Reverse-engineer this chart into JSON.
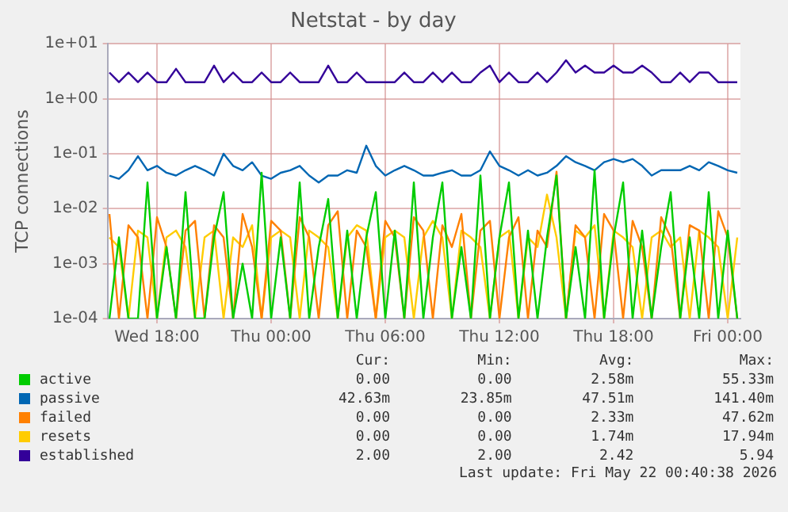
{
  "chart_data": {
    "type": "line",
    "title": "Netstat - by day",
    "ylabel": "TCP connections",
    "log": "y",
    "grid": true,
    "legend": "bottom",
    "marker": "none",
    "line_style": "solid",
    "x": [
      "2026-05-20T15:30",
      "2026-05-20T16:00",
      "2026-05-20T16:30",
      "2026-05-20T17:00",
      "2026-05-20T17:30",
      "2026-05-20T18:00",
      "2026-05-20T18:30",
      "2026-05-20T19:00",
      "2026-05-20T19:30",
      "2026-05-20T20:00",
      "2026-05-20T20:30",
      "2026-05-20T21:00",
      "2026-05-20T21:30",
      "2026-05-20T22:00",
      "2026-05-20T22:30",
      "2026-05-20T23:00",
      "2026-05-20T23:30",
      "2026-05-21T00:00",
      "2026-05-21T00:30",
      "2026-05-21T01:00",
      "2026-05-21T01:30",
      "2026-05-21T02:00",
      "2026-05-21T02:30",
      "2026-05-21T03:00",
      "2026-05-21T03:30",
      "2026-05-21T04:00",
      "2026-05-21T04:30",
      "2026-05-21T05:00",
      "2026-05-21T05:30",
      "2026-05-21T06:00",
      "2026-05-21T06:30",
      "2026-05-21T07:00",
      "2026-05-21T07:30",
      "2026-05-21T08:00",
      "2026-05-21T08:30",
      "2026-05-21T09:00",
      "2026-05-21T09:30",
      "2026-05-21T10:00",
      "2026-05-21T10:30",
      "2026-05-21T11:00",
      "2026-05-21T11:30",
      "2026-05-21T12:00",
      "2026-05-21T12:30",
      "2026-05-21T13:00",
      "2026-05-21T13:30",
      "2026-05-21T14:00",
      "2026-05-21T14:30",
      "2026-05-21T15:00",
      "2026-05-21T15:30",
      "2026-05-21T16:00",
      "2026-05-21T16:30",
      "2026-05-21T17:00",
      "2026-05-21T17:30",
      "2026-05-21T18:00",
      "2026-05-21T18:30",
      "2026-05-21T19:00",
      "2026-05-21T19:30",
      "2026-05-21T20:00",
      "2026-05-21T20:30",
      "2026-05-21T21:00",
      "2026-05-21T21:30",
      "2026-05-21T22:00",
      "2026-05-21T22:30",
      "2026-05-21T23:00",
      "2026-05-21T23:30",
      "2026-05-22T00:00",
      "2026-05-22T00:30"
    ],
    "xlim": [
      "2026-05-20T15:24",
      "2026-05-22T00:40"
    ],
    "xticks": [
      {
        "value": "2026-05-20T18:00",
        "label": "Wed 18:00"
      },
      {
        "value": "2026-05-21T00:00",
        "label": "Thu 00:00"
      },
      {
        "value": "2026-05-21T06:00",
        "label": "Thu 06:00"
      },
      {
        "value": "2026-05-21T12:00",
        "label": "Thu 12:00"
      },
      {
        "value": "2026-05-21T18:00",
        "label": "Thu 18:00"
      },
      {
        "value": "2026-05-22T00:00",
        "label": "Fri 00:00"
      }
    ],
    "ylim": [
      0.0001,
      10
    ],
    "yticks": [
      {
        "value": 0.0001,
        "label": "1e-04"
      },
      {
        "value": 0.001,
        "label": "1e-03"
      },
      {
        "value": 0.01,
        "label": "1e-02"
      },
      {
        "value": 0.1,
        "label": "1e-01"
      },
      {
        "value": 1,
        "label": "1e+00"
      },
      {
        "value": 10,
        "label": "1e+01"
      }
    ],
    "series": [
      {
        "name": "active",
        "color": "#00cc00",
        "values": [
          0.0001,
          0.003,
          0.0001,
          0.0001,
          0.03,
          0.0001,
          0.002,
          0.0001,
          0.02,
          0.0001,
          0.0001,
          0.003,
          0.02,
          0.0001,
          0.001,
          0.0001,
          0.045,
          0.0001,
          0.003,
          0.0001,
          0.03,
          0.0001,
          0.002,
          0.015,
          0.0001,
          0.004,
          0.0001,
          0.003,
          0.02,
          0.0001,
          0.004,
          0.0001,
          0.03,
          0.0001,
          0.003,
          0.03,
          0.0001,
          0.002,
          0.0001,
          0.04,
          0.0001,
          0.003,
          0.03,
          0.0001,
          0.004,
          0.0001,
          0.003,
          0.04,
          0.0001,
          0.002,
          0.0001,
          0.05,
          0.0001,
          0.003,
          0.03,
          0.0001,
          0.004,
          0.0001,
          0.002,
          0.02,
          0.0001,
          0.003,
          0.0001,
          0.02,
          0.0001,
          0.004,
          0.0001
        ]
      },
      {
        "name": "passive",
        "color": "#0066b3",
        "values": [
          0.04,
          0.035,
          0.05,
          0.09,
          0.05,
          0.06,
          0.045,
          0.04,
          0.05,
          0.06,
          0.05,
          0.04,
          0.1,
          0.06,
          0.05,
          0.07,
          0.04,
          0.035,
          0.045,
          0.05,
          0.06,
          0.04,
          0.03,
          0.04,
          0.04,
          0.05,
          0.045,
          0.14,
          0.06,
          0.04,
          0.05,
          0.06,
          0.05,
          0.04,
          0.04,
          0.045,
          0.05,
          0.04,
          0.04,
          0.05,
          0.11,
          0.06,
          0.05,
          0.04,
          0.05,
          0.04,
          0.045,
          0.06,
          0.09,
          0.07,
          0.06,
          0.05,
          0.07,
          0.08,
          0.07,
          0.08,
          0.06,
          0.04,
          0.05,
          0.05,
          0.05,
          0.06,
          0.05,
          0.07,
          0.06,
          0.05,
          0.045
        ]
      },
      {
        "name": "failed",
        "color": "#ff8000",
        "values": [
          0.008,
          0.0001,
          0.005,
          0.003,
          0.0001,
          0.007,
          0.002,
          0.0001,
          0.004,
          0.006,
          0.0001,
          0.005,
          0.003,
          0.0001,
          0.008,
          0.002,
          0.0001,
          0.006,
          0.004,
          0.0001,
          0.007,
          0.003,
          0.0001,
          0.005,
          0.009,
          0.0001,
          0.004,
          0.002,
          0.0001,
          0.006,
          0.003,
          0.0001,
          0.007,
          0.004,
          0.0001,
          0.005,
          0.002,
          0.008,
          0.0001,
          0.004,
          0.006,
          0.0001,
          0.003,
          0.007,
          0.0001,
          0.004,
          0.002,
          0.047,
          0.0001,
          0.005,
          0.003,
          0.0001,
          0.008,
          0.004,
          0.0001,
          0.006,
          0.002,
          0.0001,
          0.007,
          0.003,
          0.0001,
          0.005,
          0.004,
          0.0001,
          0.009,
          0.003,
          0.0001
        ]
      },
      {
        "name": "resets",
        "color": "#ffcc00",
        "values": [
          0.003,
          0.002,
          0.0001,
          0.004,
          0.003,
          0.0001,
          0.003,
          0.004,
          0.002,
          0.0001,
          0.003,
          0.004,
          0.0001,
          0.003,
          0.002,
          0.005,
          0.0001,
          0.003,
          0.004,
          0.003,
          0.0001,
          0.004,
          0.003,
          0.002,
          0.0001,
          0.003,
          0.005,
          0.004,
          0.0001,
          0.003,
          0.004,
          0.003,
          0.0001,
          0.003,
          0.006,
          0.003,
          0.0001,
          0.004,
          0.003,
          0.002,
          0.0001,
          0.003,
          0.004,
          0.0001,
          0.003,
          0.002,
          0.018,
          0.003,
          0.0001,
          0.004,
          0.003,
          0.005,
          0.0001,
          0.004,
          0.003,
          0.002,
          0.0001,
          0.003,
          0.004,
          0.002,
          0.003,
          0.0001,
          0.004,
          0.003,
          0.002,
          0.0001,
          0.003
        ]
      },
      {
        "name": "established",
        "color": "#330099",
        "values": [
          3,
          2,
          3,
          2,
          3,
          2,
          2,
          3.5,
          2,
          2,
          2,
          4,
          2,
          3,
          2,
          2,
          3,
          2,
          2,
          3,
          2,
          2,
          2,
          4,
          2,
          2,
          3,
          2,
          2,
          2,
          2,
          3,
          2,
          2,
          3,
          2,
          3,
          2,
          2,
          3,
          4,
          2,
          3,
          2,
          2,
          3,
          2,
          3,
          5,
          3,
          4,
          3,
          3,
          4,
          3,
          3,
          4,
          3,
          2,
          2,
          3,
          2,
          3,
          3,
          2,
          2,
          2
        ]
      }
    ],
    "annotations": [
      "Cur:",
      "Min:",
      "Avg:",
      "Max:",
      "0.00",
      "0.00",
      "2.58m",
      "55.33m",
      "42.63m",
      "23.85m",
      "47.51m",
      "141.40m",
      "0.00",
      "0.00",
      "2.33m",
      "47.62m",
      "0.00",
      "0.00",
      "1.74m",
      "17.94m",
      "2.00",
      "2.00",
      "2.42",
      "5.94",
      "Last update: Fri May 22 00:40:38 2026"
    ]
  }
}
